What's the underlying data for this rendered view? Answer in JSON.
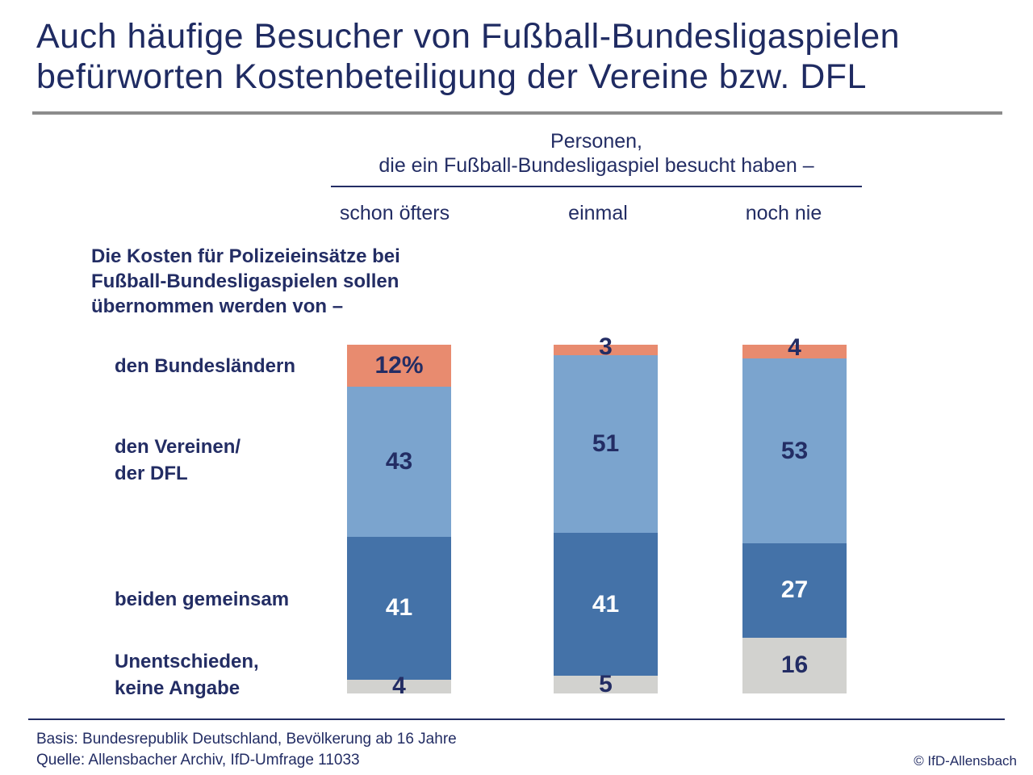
{
  "title": {
    "line1": "Auch häufige Besucher von Fußball-Bundesligaspielen",
    "line2": "befürworten Kostenbeteiligung der Vereine bzw. DFL"
  },
  "header": {
    "group_line1": "Personen,",
    "group_line2": "die ein Fußball-Bundesligaspiel besucht haben –",
    "columns": [
      "schon öfters",
      "einmal",
      "noch nie"
    ]
  },
  "question": {
    "line1": "Die Kosten für Polizeieinsätze bei",
    "line2": "Fußball-Bundesligaspielen sollen",
    "line3": "übernommen werden von –"
  },
  "footer": {
    "basis": "Basis: Bundesrepublik Deutschland, Bevölkerung ab 16 Jahre",
    "quelle": "Quelle: Allensbacher Archiv, IfD-Umfrage 11033",
    "copyright": "© IfD-Allensbach"
  },
  "colors": {
    "navy_text": "#232D64",
    "title_navy": "#1F2B62",
    "rule_gray": "#8C8C8C",
    "orange": "#E88B6F",
    "light_blue": "#7BA4CE",
    "dark_blue": "#4472A8",
    "segment_gray": "#D2D2CF",
    "white_value": "#FFFFFF"
  },
  "chart_data": {
    "type": "bar",
    "stacked": true,
    "unit": "percent",
    "total_per_column": 100,
    "categories": [
      "schon öfters",
      "einmal",
      "noch nie"
    ],
    "series": [
      {
        "name": "den Bundesländern",
        "label_lines": [
          "den Bundesländern"
        ],
        "values": [
          12,
          3,
          4
        ],
        "display": [
          "12%",
          "3",
          "4"
        ],
        "color_key": "orange",
        "value_color": "navy"
      },
      {
        "name": "den Vereinen/ der DFL",
        "label_lines": [
          "den Vereinen/",
          "der DFL"
        ],
        "values": [
          43,
          51,
          53
        ],
        "display": [
          "43",
          "51",
          "53"
        ],
        "color_key": "light_blue",
        "value_color": "navy"
      },
      {
        "name": "beiden gemeinsam",
        "label_lines": [
          "beiden gemeinsam"
        ],
        "values": [
          41,
          41,
          27
        ],
        "display": [
          "41",
          "41",
          "27"
        ],
        "color_key": "dark_blue",
        "value_color": "white"
      },
      {
        "name": "Unentschieden, keine Angabe",
        "label_lines": [
          "Unentschieden,",
          "keine Angabe"
        ],
        "values": [
          4,
          5,
          16
        ],
        "display": [
          "4",
          "5",
          "16"
        ],
        "color_key": "gray",
        "value_color": "navy"
      }
    ],
    "legend_position": "left-row-labels",
    "grid": false
  }
}
